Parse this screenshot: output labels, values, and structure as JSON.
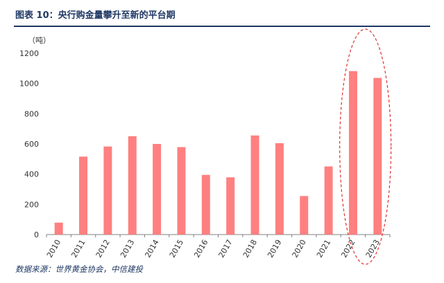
{
  "header": {
    "title": "图表 10：央行购金量攀升至新的平台期"
  },
  "footer": {
    "source": "数据来源：世界黄金协会，中信建投"
  },
  "chart_data": {
    "type": "bar",
    "title": "图表 10：央行购金量攀升至新的平台期",
    "xlabel": "",
    "ylabel": "",
    "unit_label": "（吨）",
    "categories": [
      "2010",
      "2011",
      "2012",
      "2013",
      "2014",
      "2015",
      "2016",
      "2017",
      "2018",
      "2019",
      "2020",
      "2021",
      "2022",
      "2023"
    ],
    "values": [
      79,
      516,
      583,
      651,
      600,
      579,
      395,
      379,
      656,
      605,
      255,
      451,
      1082,
      1037
    ],
    "ylim": [
      0,
      1200
    ],
    "yticks": [
      "0",
      "200",
      "400",
      "600",
      "800",
      "1000",
      "1200"
    ],
    "grid": false,
    "legend": "none",
    "bar_color": "#ff8080",
    "highlight": {
      "categories": [
        "2022",
        "2023"
      ],
      "style": "dashed-ellipse",
      "color": "#e03030"
    }
  }
}
